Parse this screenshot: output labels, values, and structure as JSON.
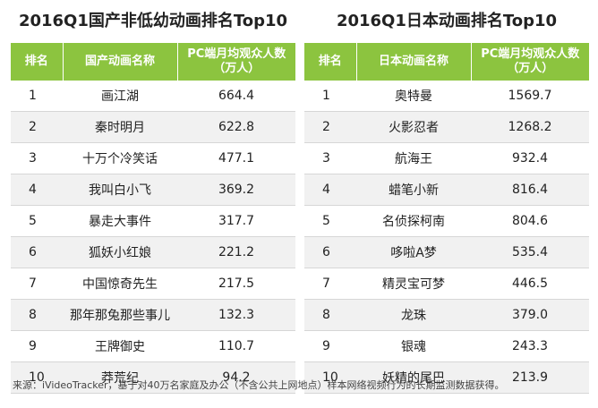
{
  "left": {
    "title": "2016Q1国产非低幼动画排名Top10",
    "headers": [
      "排名",
      "国产动画名称",
      "PC端月均观众人数",
      "（万人）"
    ],
    "rows": [
      {
        "rank": "1",
        "name": "画江湖",
        "value": "664.4"
      },
      {
        "rank": "2",
        "name": "秦时明月",
        "value": "622.8"
      },
      {
        "rank": "3",
        "name": "十万个冷笑话",
        "value": "477.1"
      },
      {
        "rank": "4",
        "name": "我叫白小飞",
        "value": "369.2"
      },
      {
        "rank": "5",
        "name": "暴走大事件",
        "value": "317.7"
      },
      {
        "rank": "6",
        "name": "狐妖小红娘",
        "value": "221.2"
      },
      {
        "rank": "7",
        "name": "中国惊奇先生",
        "value": "217.5"
      },
      {
        "rank": "8",
        "name": "那年那兔那些事儿",
        "value": "132.3"
      },
      {
        "rank": "9",
        "name": "王牌御史",
        "value": "110.7"
      },
      {
        "rank": "10",
        "name": "莽荒纪",
        "value": "94.2"
      }
    ]
  },
  "right": {
    "title": "2016Q1日本动画排名Top10",
    "headers": [
      "排名",
      "日本动画名称",
      "PC端月均观众人数",
      "（万人）"
    ],
    "rows": [
      {
        "rank": "1",
        "name": "奥特曼",
        "value": "1569.7"
      },
      {
        "rank": "2",
        "name": "火影忍者",
        "value": "1268.2"
      },
      {
        "rank": "3",
        "name": "航海王",
        "value": "932.4"
      },
      {
        "rank": "4",
        "name": "蜡笔小新",
        "value": "816.4"
      },
      {
        "rank": "5",
        "name": "名侦探柯南",
        "value": "804.6"
      },
      {
        "rank": "6",
        "name": "哆啦A梦",
        "value": "535.4"
      },
      {
        "rank": "7",
        "name": "精灵宝可梦",
        "value": "446.5"
      },
      {
        "rank": "8",
        "name": "龙珠",
        "value": "379.0"
      },
      {
        "rank": "9",
        "name": "银魂",
        "value": "243.3"
      },
      {
        "rank": "10",
        "name": "妖精的尾巴",
        "value": "213.9"
      }
    ]
  },
  "source": "来源：iVideoTracker，基于对40万名家庭及办公（不含公共上网地点）样本网络视频行为的长期监测数据获得。",
  "colors": {
    "header_bg": "#8cc43f",
    "stripe": "#f1f1f1"
  }
}
